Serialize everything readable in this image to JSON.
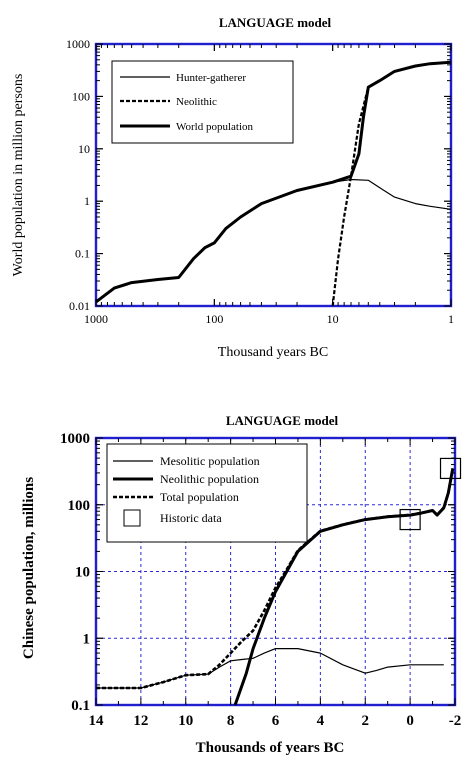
{
  "chart_data": [
    {
      "type": "line",
      "title": "LANGUAGE model",
      "xlabel": "Thousand years BC",
      "ylabel": "World population in million persons",
      "x_scale": "log",
      "y_scale": "log",
      "x_reversed": true,
      "xlim": [
        1000,
        1
      ],
      "ylim": [
        0.01,
        1000
      ],
      "x_ticks": [
        1000,
        100,
        10,
        1
      ],
      "x_tick_labels": [
        "1000",
        "100",
        "10",
        "1"
      ],
      "y_ticks": [
        0.01,
        0.1,
        1,
        10,
        100,
        1000
      ],
      "y_tick_labels": [
        "0.01",
        "0.1",
        "1",
        "10",
        "100",
        "1000"
      ],
      "grid": false,
      "legend_position": "top-left",
      "series": [
        {
          "name": "Hunter-gatherer",
          "style": "thin",
          "x": [
            1000,
            700,
            500,
            300,
            200,
            150,
            120,
            100,
            80,
            60,
            40,
            20,
            10,
            7,
            5,
            4,
            3,
            2,
            1.5,
            1
          ],
          "y": [
            0.012,
            0.022,
            0.028,
            0.032,
            0.035,
            0.08,
            0.13,
            0.16,
            0.3,
            0.5,
            0.9,
            1.6,
            2.3,
            2.6,
            2.5,
            1.8,
            1.2,
            0.9,
            0.8,
            0.7
          ]
        },
        {
          "name": "Neolithic",
          "style": "dashed",
          "x": [
            10,
            9,
            8,
            7,
            6,
            5,
            4,
            3,
            2,
            1.5,
            1
          ],
          "y": [
            0.01,
            0.08,
            0.5,
            3,
            30,
            150,
            200,
            300,
            380,
            420,
            450
          ]
        },
        {
          "name": "World population",
          "style": "thick",
          "x": [
            1000,
            700,
            500,
            300,
            200,
            150,
            120,
            100,
            80,
            60,
            40,
            20,
            10,
            7,
            6,
            5.5,
            5,
            4,
            3,
            2,
            1.5,
            1
          ],
          "y": [
            0.012,
            0.022,
            0.028,
            0.032,
            0.035,
            0.08,
            0.13,
            0.16,
            0.3,
            0.5,
            0.9,
            1.6,
            2.3,
            3,
            8,
            40,
            150,
            200,
            300,
            380,
            420,
            450
          ]
        }
      ]
    },
    {
      "type": "line",
      "title": "LANGUAGE model",
      "xlabel": "Thousands of years BC",
      "ylabel": "Chinese population, millions",
      "x_reversed": true,
      "xlim": [
        14,
        -2
      ],
      "ylim": [
        0.1,
        1000
      ],
      "y_scale": "log",
      "x_ticks": [
        14,
        12,
        10,
        8,
        6,
        4,
        2,
        0,
        -2
      ],
      "x_tick_labels": [
        "14",
        "12",
        "10",
        "8",
        "6",
        "4",
        "2",
        "0",
        "-2"
      ],
      "y_ticks": [
        0.1,
        1,
        10,
        100,
        1000
      ],
      "y_tick_labels": [
        "0.1",
        "1",
        "10",
        "100",
        "1000"
      ],
      "grid": true,
      "legend_position": "top-left",
      "series": [
        {
          "name": "Mesolitic population",
          "style": "thin",
          "x": [
            14,
            12,
            11,
            10,
            9,
            8.5,
            8,
            7.5,
            7,
            6.5,
            6,
            5,
            4,
            3,
            2,
            1.5,
            1,
            0,
            -1,
            -1.5
          ],
          "y": [
            0.18,
            0.18,
            0.22,
            0.28,
            0.29,
            0.37,
            0.46,
            0.48,
            0.5,
            0.6,
            0.7,
            0.7,
            0.6,
            0.4,
            0.3,
            0.33,
            0.37,
            0.4,
            0.4,
            0.4
          ]
        },
        {
          "name": "Neolithic population",
          "style": "thick",
          "x": [
            7.8,
            7.3,
            7,
            6.5,
            6,
            5.5,
            5,
            4,
            3,
            2,
            1,
            0,
            -0.5,
            -1,
            -1.2,
            -1.5,
            -1.7,
            -1.9
          ],
          "y": [
            0.1,
            0.3,
            0.7,
            2,
            5,
            10,
            20,
            40,
            50,
            60,
            66,
            70,
            75,
            82,
            70,
            90,
            150,
            350
          ]
        },
        {
          "name": "Total population",
          "style": "dashed",
          "x": [
            14,
            12,
            11,
            10,
            9,
            8.5,
            8,
            7.5,
            7,
            6.5,
            6,
            5.5,
            5,
            4,
            3,
            2,
            1,
            0,
            -0.5,
            -1,
            -1.2,
            -1.5,
            -1.7,
            -1.9
          ],
          "y": [
            0.18,
            0.18,
            0.22,
            0.28,
            0.29,
            0.4,
            0.6,
            0.9,
            1.3,
            2.6,
            5.7,
            10.7,
            20.7,
            40.6,
            50.4,
            60.3,
            66.4,
            70.4,
            75.4,
            82.4,
            70.4,
            90.4,
            150,
            350
          ]
        },
        {
          "name": "Historic data",
          "style": "square-marker",
          "x": [
            0,
            -1.8
          ],
          "y": [
            60,
            350
          ]
        }
      ]
    }
  ]
}
